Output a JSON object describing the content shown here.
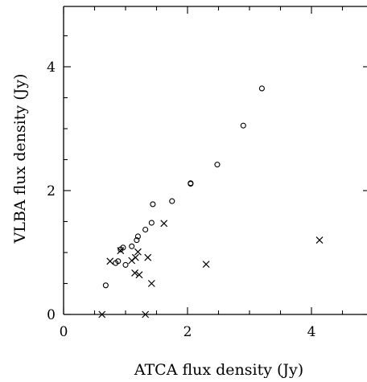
{
  "chart_data": {
    "type": "scatter",
    "xlabel": "ATCA flux density (Jy)",
    "ylabel": "VLBA flux density (Jy)",
    "xlim": [
      0,
      5
    ],
    "ylim": [
      0,
      5
    ],
    "xticks": [
      0,
      2,
      4
    ],
    "yticks": [
      0,
      2,
      4
    ],
    "xtick_labels": [
      "0",
      "2",
      "4"
    ],
    "ytick_labels": [
      "0",
      "2",
      "4"
    ],
    "grid": false,
    "series": [
      {
        "marker": "circle",
        "points": [
          [
            0.68,
            0.47
          ],
          [
            0.84,
            0.83
          ],
          [
            0.88,
            0.86
          ],
          [
            0.92,
            1.05
          ],
          [
            0.96,
            1.08
          ],
          [
            1.0,
            0.8
          ],
          [
            1.1,
            1.1
          ],
          [
            1.18,
            1.2
          ],
          [
            1.2,
            1.26
          ],
          [
            1.32,
            1.37
          ],
          [
            1.42,
            1.48
          ],
          [
            1.44,
            1.78
          ],
          [
            1.75,
            1.83
          ],
          [
            2.05,
            2.11
          ],
          [
            2.05,
            2.12
          ],
          [
            2.48,
            2.42
          ],
          [
            2.9,
            3.05
          ],
          [
            3.2,
            3.65
          ]
        ]
      },
      {
        "marker": "cross",
        "points": [
          [
            0.62,
            0.0
          ],
          [
            0.75,
            0.86
          ],
          [
            0.92,
            1.03
          ],
          [
            1.1,
            0.87
          ],
          [
            1.15,
            0.67
          ],
          [
            1.16,
            0.92
          ],
          [
            1.2,
            1.01
          ],
          [
            1.22,
            0.64
          ],
          [
            1.32,
            0.0
          ],
          [
            1.36,
            0.92
          ],
          [
            1.42,
            0.5
          ],
          [
            1.62,
            1.47
          ],
          [
            2.3,
            0.81
          ],
          [
            4.13,
            1.2
          ]
        ]
      }
    ]
  }
}
